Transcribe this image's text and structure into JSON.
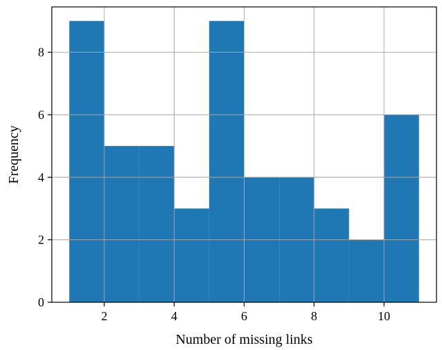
{
  "chart_data": {
    "type": "bar",
    "subtype": "histogram",
    "title": "",
    "xlabel": "Number of missing links",
    "ylabel": "Frequency",
    "bins": [
      {
        "x0": 1,
        "x1": 2,
        "count": 9
      },
      {
        "x0": 2,
        "x1": 3,
        "count": 5
      },
      {
        "x0": 3,
        "x1": 4,
        "count": 5
      },
      {
        "x0": 4,
        "x1": 5,
        "count": 3
      },
      {
        "x0": 5,
        "x1": 6,
        "count": 9
      },
      {
        "x0": 6,
        "x1": 7,
        "count": 4
      },
      {
        "x0": 7,
        "x1": 8,
        "count": 4
      },
      {
        "x0": 8,
        "x1": 9,
        "count": 3
      },
      {
        "x0": 9,
        "x1": 10,
        "count": 2
      },
      {
        "x0": 10,
        "x1": 11,
        "count": 6
      }
    ],
    "xlim": [
      0.5,
      11.5
    ],
    "ylim": [
      0,
      9.45
    ],
    "xticks": [
      2,
      4,
      6,
      8,
      10
    ],
    "yticks": [
      0,
      2,
      4,
      6,
      8
    ],
    "grid": true,
    "bar_color": "#1f77b4",
    "grid_color": "#b0b0b0"
  }
}
